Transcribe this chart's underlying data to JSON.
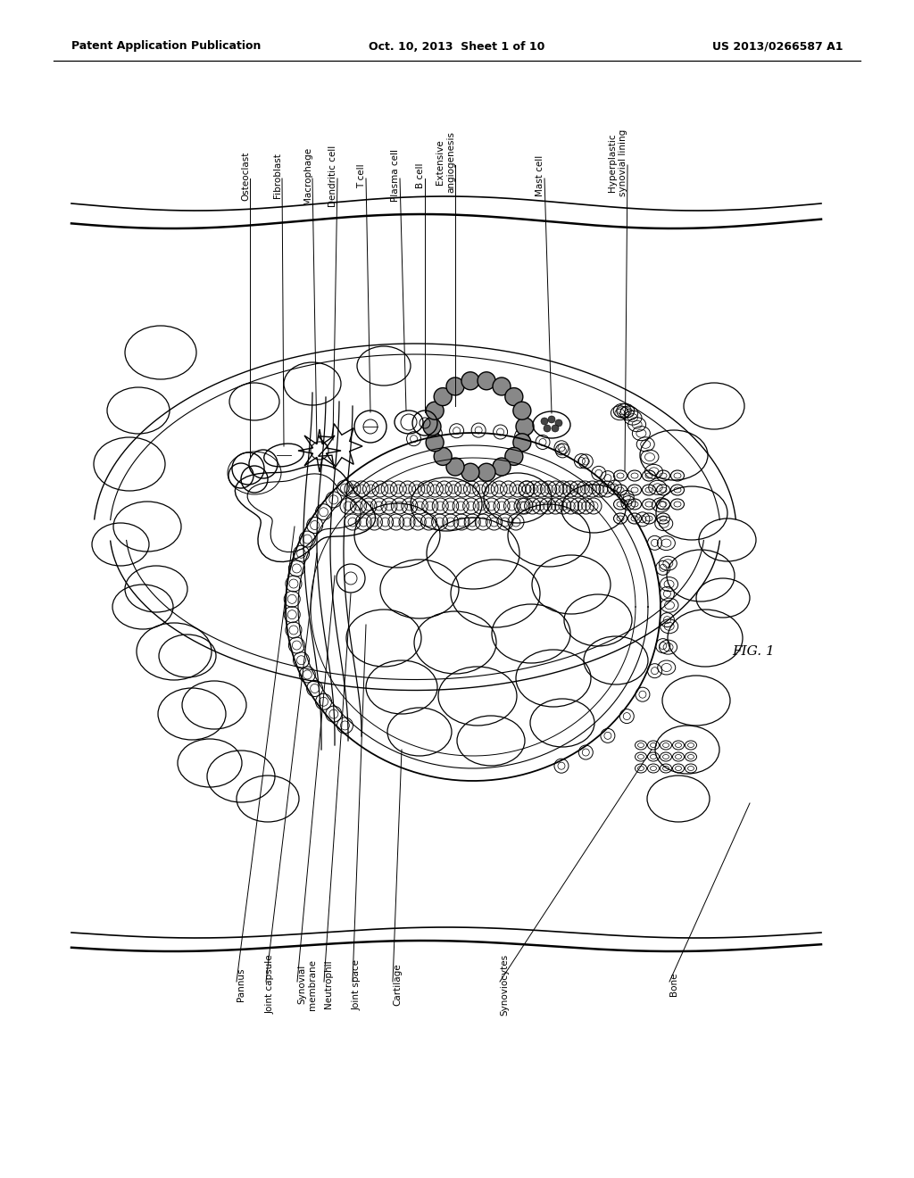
{
  "header_left": "Patent Application Publication",
  "header_center": "Oct. 10, 2013  Sheet 1 of 10",
  "header_right": "US 2013/0266587 A1",
  "fig_label": "FIG. 1",
  "bg_color": "#ffffff",
  "line_color": "#000000",
  "font_size_header": 9,
  "font_size_label": 7.5,
  "font_size_fig": 11
}
